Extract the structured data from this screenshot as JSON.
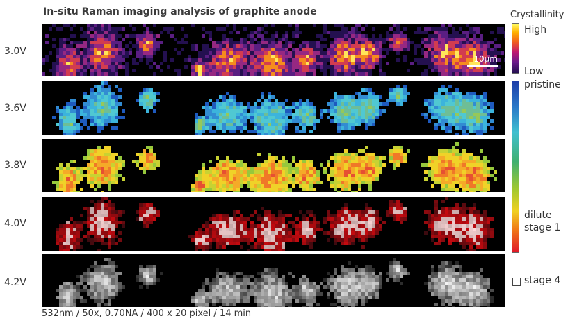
{
  "title": "In-situ Raman imaging analysis of graphite anode",
  "footer": "532nm / 50x, 0.70NA / 400 x 20 pixel / 14 min",
  "scale_bar": "10µm",
  "rows": [
    {
      "label": "3.0V",
      "palette": "crystallinity"
    },
    {
      "label": "3.6V",
      "palette": "blue-cyan"
    },
    {
      "label": "3.8V",
      "palette": "yellow-green"
    },
    {
      "label": "4.0V",
      "palette": "red-white"
    },
    {
      "label": "4.2V",
      "palette": "grayscale"
    }
  ],
  "legend": {
    "crystallinity_title": "Crystallinity",
    "high": "High",
    "low": "Low",
    "pristine": "pristine",
    "dilute": "dilute",
    "stage1": "stage 1",
    "stage4": "stage 4"
  },
  "colors": {
    "panel_background": "#000000",
    "crystallinity_high": "#ffff66",
    "crystallinity_low": "#241050",
    "pristine": "#1e3ea8",
    "stage1": "#e01828",
    "stage4": "#ffffff"
  }
}
